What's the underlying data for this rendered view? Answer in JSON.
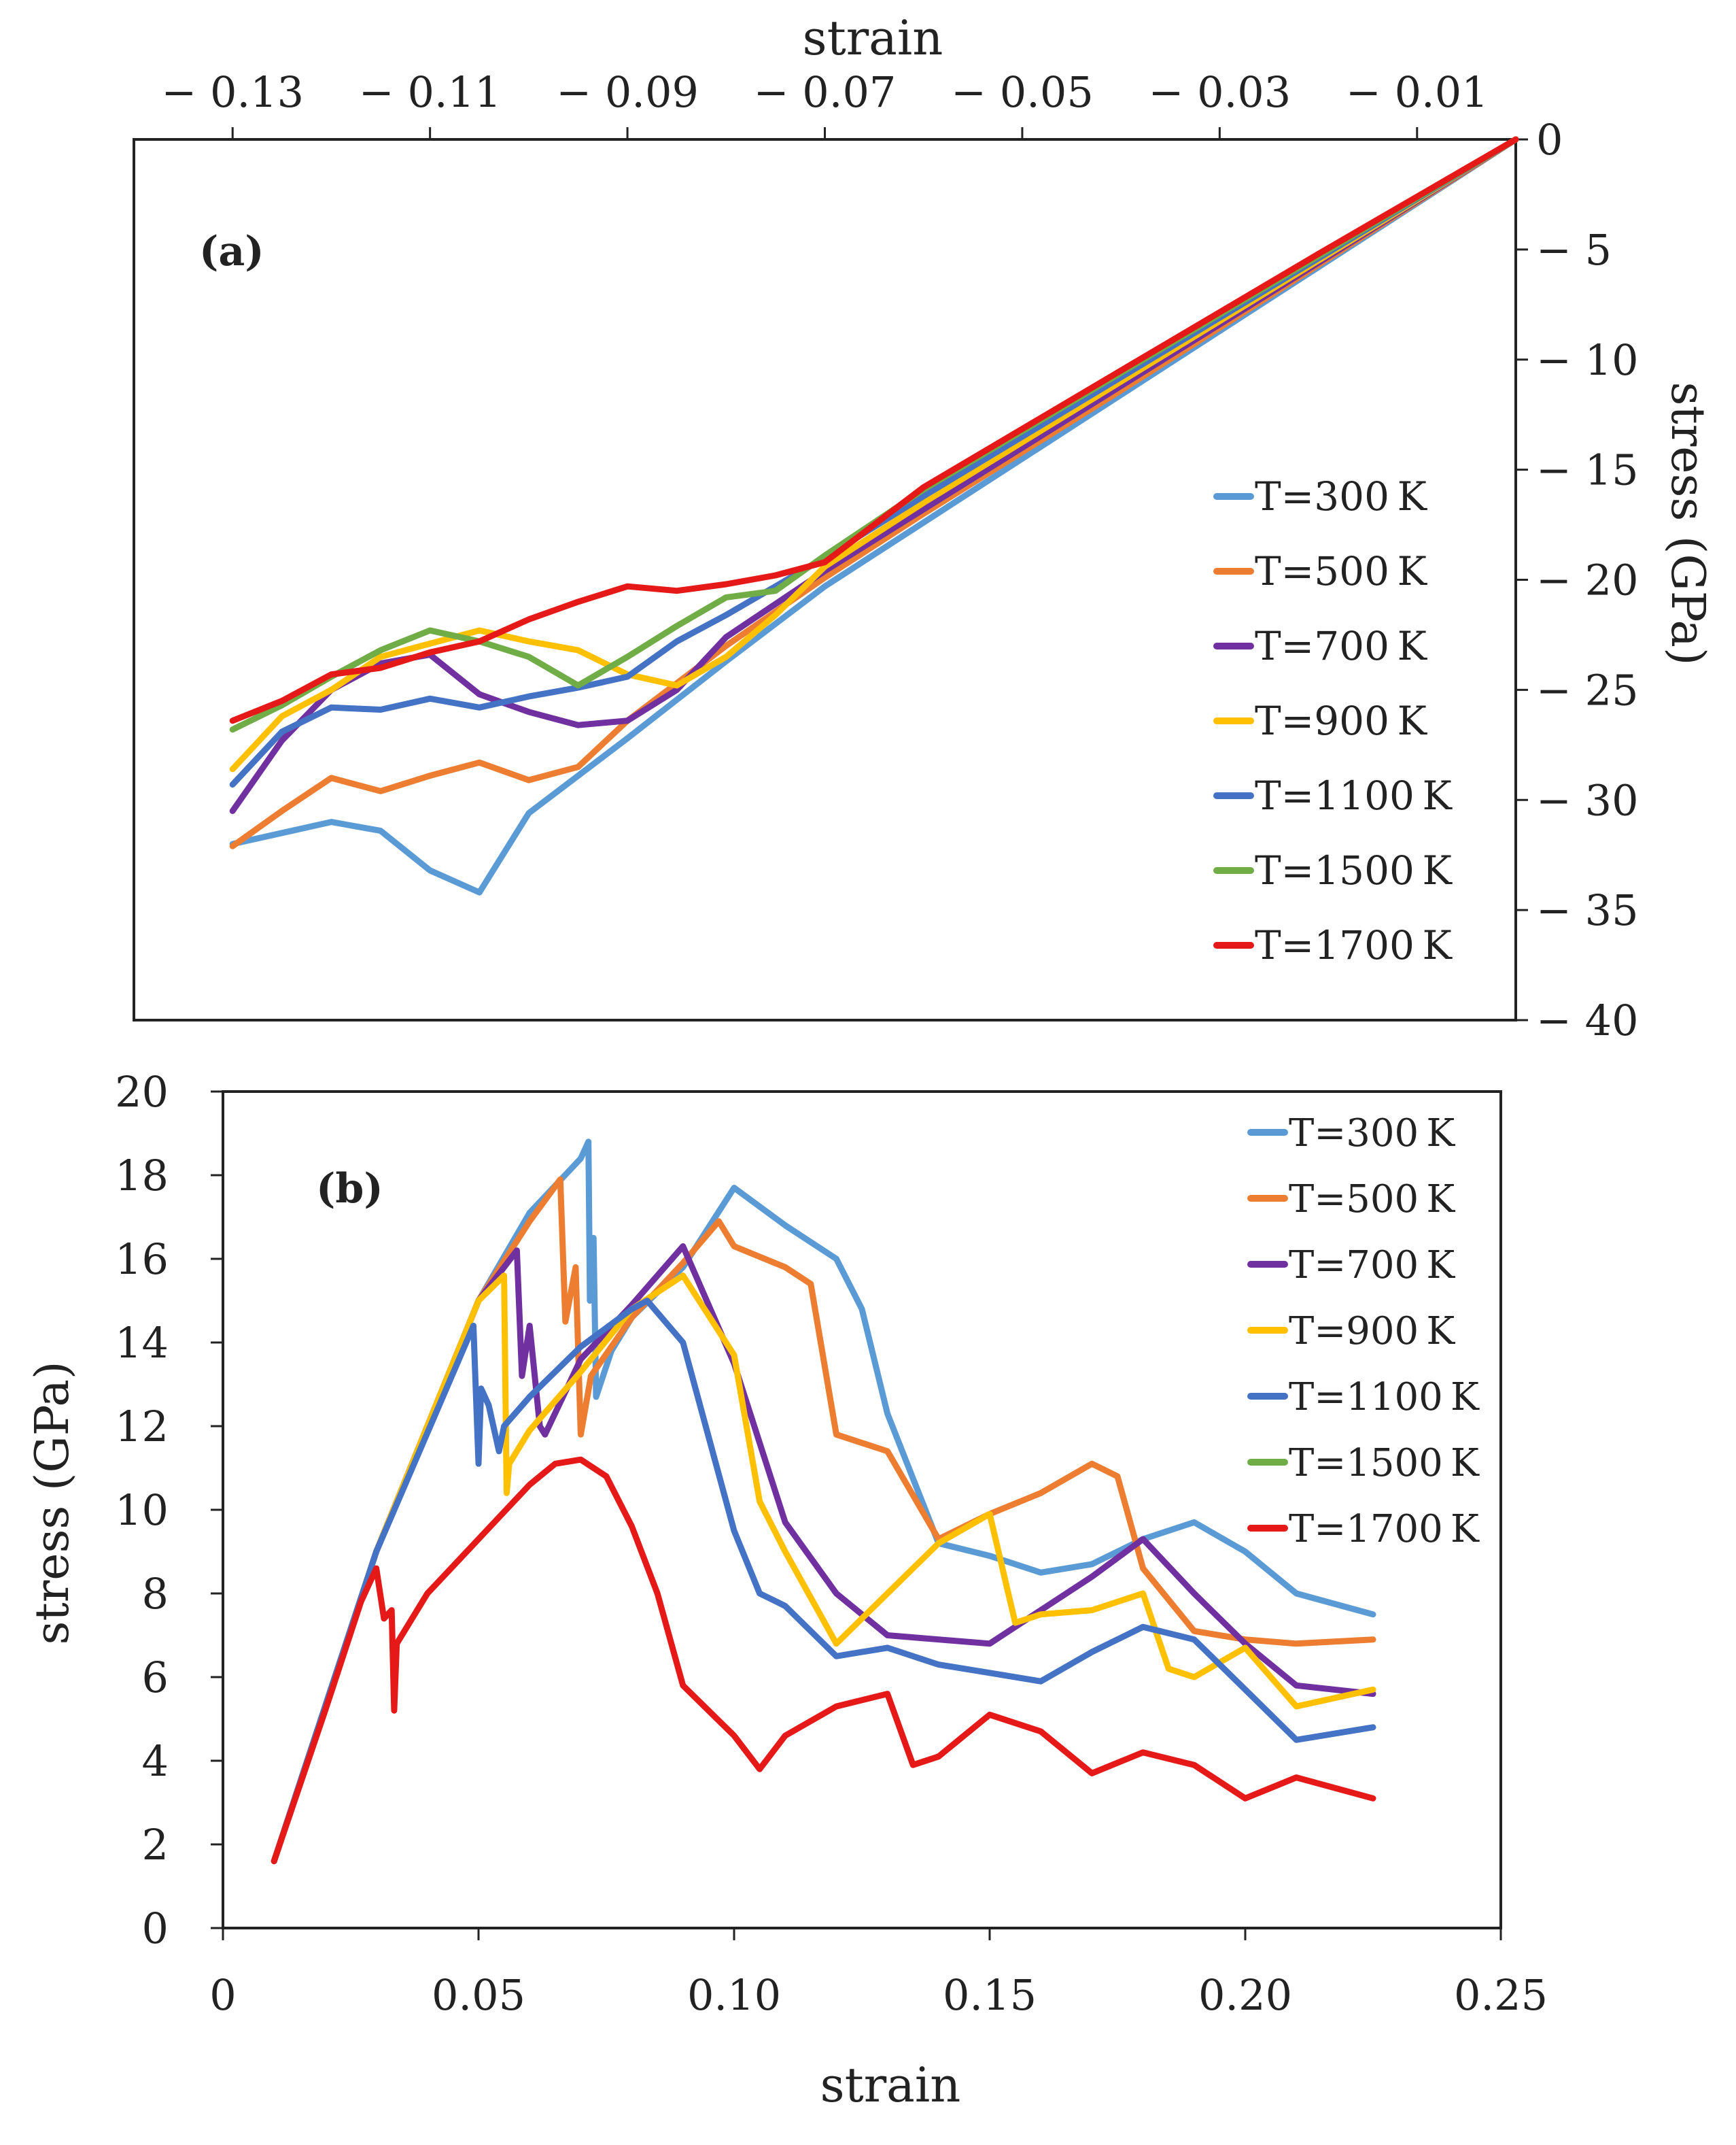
{
  "colors": {
    "T300": "#5b9bd5",
    "T500": "#ed7d31",
    "T700": "#7030a0",
    "T900": "#ffc000",
    "T1100": "#4472c4",
    "T1500": "#70ad47",
    "T1700": "#e61919",
    "axis": "#222222"
  },
  "chart_data": [
    {
      "id": "a",
      "type": "line",
      "panel_label": "(a)",
      "xlabel": "strain",
      "ylabel": "stress (GPa)",
      "xlim": [
        -0.14,
        0.0
      ],
      "ylim": [
        -40,
        0
      ],
      "x_axis_position": "top",
      "y_axis_position": "right",
      "xticks": [
        -0.13,
        -0.11,
        -0.09,
        -0.07,
        -0.05,
        -0.03,
        -0.01
      ],
      "xtick_labels": [
        "− 0.13",
        "− 0.11",
        "− 0.09",
        "− 0.07",
        "− 0.05",
        "− 0.03",
        "− 0.01"
      ],
      "yticks": [
        0,
        -5,
        -10,
        -15,
        -20,
        -25,
        -30,
        -35,
        -40
      ],
      "ytick_labels": [
        "0",
        "− 5",
        "− 10",
        "− 15",
        "− 20",
        "− 25",
        "− 30",
        "− 35",
        "− 40"
      ],
      "legend_position": "right",
      "series": [
        {
          "name": "T=300 K",
          "color_key": "T300",
          "x": [
            -0.0,
            -0.02,
            -0.04,
            -0.06,
            -0.07,
            -0.08,
            -0.09,
            -0.1,
            -0.105,
            -0.11,
            -0.115,
            -0.12,
            -0.125,
            -0.13
          ],
          "y": [
            0,
            -5.8,
            -11.6,
            -17.4,
            -20.3,
            -23.7,
            -27.2,
            -30.6,
            -34.2,
            -33.2,
            -31.4,
            -31.0,
            -31.5,
            -32.0
          ]
        },
        {
          "name": "T=500 K",
          "color_key": "T500",
          "x": [
            -0.0,
            -0.02,
            -0.04,
            -0.06,
            -0.07,
            -0.08,
            -0.09,
            -0.095,
            -0.1,
            -0.105,
            -0.11,
            -0.115,
            -0.12,
            -0.125,
            -0.13
          ],
          "y": [
            0,
            -5.7,
            -11.4,
            -17.0,
            -19.9,
            -23.0,
            -26.4,
            -28.5,
            -29.1,
            -28.3,
            -28.9,
            -29.6,
            -29.0,
            -30.5,
            -32.1
          ]
        },
        {
          "name": "T=700 K",
          "color_key": "T700",
          "x": [
            -0.0,
            -0.02,
            -0.04,
            -0.06,
            -0.07,
            -0.08,
            -0.085,
            -0.09,
            -0.095,
            -0.1,
            -0.105,
            -0.11,
            -0.115,
            -0.12,
            -0.125,
            -0.13
          ],
          "y": [
            0,
            -5.6,
            -11.2,
            -16.8,
            -19.6,
            -22.6,
            -25.0,
            -26.4,
            -26.6,
            -26.0,
            -25.2,
            -23.4,
            -23.8,
            -25.0,
            -27.3,
            -30.5
          ]
        },
        {
          "name": "T=900 K",
          "color_key": "T900",
          "x": [
            -0.0,
            -0.02,
            -0.04,
            -0.06,
            -0.07,
            -0.075,
            -0.08,
            -0.085,
            -0.09,
            -0.095,
            -0.1,
            -0.105,
            -0.11,
            -0.115,
            -0.12,
            -0.125,
            -0.13
          ],
          "y": [
            0,
            -5.5,
            -11.0,
            -16.5,
            -19.4,
            -21.6,
            -23.5,
            -24.8,
            -24.3,
            -23.2,
            -22.8,
            -22.3,
            -22.9,
            -23.5,
            -25.0,
            -26.2,
            -28.6
          ]
        },
        {
          "name": "T=1100 K",
          "color_key": "T1100",
          "x": [
            -0.0,
            -0.02,
            -0.04,
            -0.06,
            -0.07,
            -0.08,
            -0.085,
            -0.09,
            -0.095,
            -0.1,
            -0.105,
            -0.11,
            -0.115,
            -0.12,
            -0.125,
            -0.13
          ],
          "y": [
            0,
            -5.4,
            -10.8,
            -16.2,
            -19.0,
            -21.6,
            -22.8,
            -24.4,
            -24.9,
            -25.3,
            -25.8,
            -25.4,
            -25.9,
            -25.8,
            -26.9,
            -29.3
          ]
        },
        {
          "name": "T=1500 K",
          "color_key": "T1500",
          "x": [
            -0.0,
            -0.02,
            -0.04,
            -0.06,
            -0.07,
            -0.075,
            -0.08,
            -0.085,
            -0.09,
            -0.095,
            -0.1,
            -0.105,
            -0.11,
            -0.115,
            -0.12,
            -0.125,
            -0.13
          ],
          "y": [
            0,
            -5.3,
            -10.6,
            -15.9,
            -18.9,
            -20.5,
            -20.8,
            -22.1,
            -23.5,
            -24.8,
            -23.5,
            -22.8,
            -22.3,
            -23.2,
            -24.4,
            -25.7,
            -26.8
          ]
        },
        {
          "name": "T=1700 K",
          "color_key": "T1700",
          "x": [
            -0.0,
            -0.02,
            -0.04,
            -0.06,
            -0.07,
            -0.075,
            -0.08,
            -0.085,
            -0.09,
            -0.095,
            -0.1,
            -0.105,
            -0.11,
            -0.115,
            -0.12,
            -0.125,
            -0.13
          ],
          "y": [
            0,
            -5.2,
            -10.5,
            -15.8,
            -19.2,
            -19.8,
            -20.2,
            -20.5,
            -20.3,
            -21.0,
            -21.8,
            -22.8,
            -23.3,
            -24.0,
            -24.3,
            -25.5,
            -26.4
          ]
        }
      ]
    },
    {
      "id": "b",
      "type": "line",
      "panel_label": "(b)",
      "xlabel": "strain",
      "ylabel": "stress (GPa)",
      "xlim": [
        0,
        0.25
      ],
      "ylim": [
        0,
        20
      ],
      "x_axis_position": "bottom",
      "y_axis_position": "left",
      "xticks": [
        0,
        0.05,
        0.1,
        0.15,
        0.2,
        0.25
      ],
      "xtick_labels": [
        "0",
        "0.05",
        "0.10",
        "0.15",
        "0.20",
        "0.25"
      ],
      "yticks": [
        0,
        2,
        4,
        6,
        8,
        10,
        12,
        14,
        16,
        18,
        20
      ],
      "ytick_labels": [
        "0",
        "2",
        "4",
        "6",
        "8",
        "10",
        "12",
        "14",
        "16",
        "18",
        "20"
      ],
      "legend_position": "top-right",
      "series": [
        {
          "name": "T=300 K",
          "color_key": "T300",
          "x": [
            0.01,
            0.03,
            0.05,
            0.06,
            0.07,
            0.0715,
            0.0718,
            0.0725,
            0.073,
            0.076,
            0.08,
            0.09,
            0.1,
            0.11,
            0.12,
            0.125,
            0.13,
            0.14,
            0.15,
            0.16,
            0.17,
            0.18,
            0.19,
            0.2,
            0.21,
            0.225
          ],
          "y": [
            1.6,
            9.0,
            15.0,
            17.1,
            18.4,
            18.8,
            15.0,
            16.5,
            12.7,
            13.8,
            14.6,
            15.8,
            17.7,
            16.8,
            16.0,
            14.8,
            12.3,
            9.2,
            8.9,
            8.5,
            8.7,
            9.3,
            9.7,
            9.0,
            8.0,
            7.5
          ]
        },
        {
          "name": "T=500 K",
          "color_key": "T500",
          "x": [
            0.01,
            0.03,
            0.05,
            0.06,
            0.066,
            0.067,
            0.069,
            0.07,
            0.072,
            0.08,
            0.09,
            0.097,
            0.1,
            0.11,
            0.115,
            0.12,
            0.13,
            0.14,
            0.15,
            0.16,
            0.17,
            0.175,
            0.18,
            0.19,
            0.2,
            0.21,
            0.225
          ],
          "y": [
            1.6,
            9.0,
            15.0,
            16.9,
            17.9,
            14.5,
            15.8,
            11.8,
            13.2,
            14.6,
            15.9,
            16.9,
            16.3,
            15.8,
            15.4,
            11.8,
            11.4,
            9.3,
            9.9,
            10.4,
            11.1,
            10.8,
            8.6,
            7.1,
            6.9,
            6.8,
            6.9
          ]
        },
        {
          "name": "T=700 K",
          "color_key": "T700",
          "x": [
            0.01,
            0.03,
            0.05,
            0.0575,
            0.0585,
            0.06,
            0.062,
            0.063,
            0.07,
            0.08,
            0.09,
            0.1,
            0.11,
            0.12,
            0.13,
            0.14,
            0.15,
            0.16,
            0.17,
            0.18,
            0.19,
            0.2,
            0.21,
            0.225
          ],
          "y": [
            1.6,
            9.0,
            15.0,
            16.2,
            13.2,
            14.4,
            12.0,
            11.8,
            13.6,
            14.9,
            16.3,
            13.5,
            9.7,
            8.0,
            7.0,
            6.9,
            6.8,
            7.6,
            8.4,
            9.3,
            8.0,
            6.8,
            5.8,
            5.6
          ]
        },
        {
          "name": "T=900 K",
          "color_key": "T900",
          "x": [
            0.01,
            0.03,
            0.05,
            0.055,
            0.0555,
            0.056,
            0.06,
            0.07,
            0.08,
            0.09,
            0.1,
            0.105,
            0.11,
            0.12,
            0.13,
            0.14,
            0.15,
            0.155,
            0.16,
            0.17,
            0.18,
            0.185,
            0.19,
            0.2,
            0.21,
            0.225
          ],
          "y": [
            1.6,
            9.0,
            15.0,
            15.6,
            10.4,
            11.1,
            11.9,
            13.3,
            14.8,
            15.6,
            13.7,
            10.2,
            9.0,
            6.8,
            8.0,
            9.2,
            9.9,
            7.3,
            7.5,
            7.6,
            8.0,
            6.2,
            6.0,
            6.7,
            5.3,
            5.7
          ]
        },
        {
          "name": "T=1100 K",
          "color_key": "T1100",
          "x": [
            0.01,
            0.03,
            0.049,
            0.05,
            0.0505,
            0.052,
            0.054,
            0.055,
            0.06,
            0.07,
            0.08,
            0.083,
            0.09,
            0.1,
            0.105,
            0.11,
            0.12,
            0.13,
            0.14,
            0.15,
            0.16,
            0.17,
            0.18,
            0.19,
            0.2,
            0.21,
            0.225
          ],
          "y": [
            1.6,
            9.0,
            14.4,
            11.1,
            12.9,
            12.5,
            11.4,
            12.0,
            12.7,
            13.9,
            14.8,
            15.0,
            14.0,
            9.5,
            8.0,
            7.7,
            6.5,
            6.7,
            6.3,
            6.1,
            5.9,
            6.6,
            7.2,
            6.9,
            5.7,
            4.5,
            4.8
          ]
        },
        {
          "name": "T=1500 K",
          "color_key": "T1500",
          "x": [],
          "y": []
        },
        {
          "name": "T=1700 K",
          "color_key": "T1700",
          "x": [
            0.01,
            0.02,
            0.027,
            0.03,
            0.0315,
            0.033,
            0.0335,
            0.034,
            0.035,
            0.04,
            0.05,
            0.06,
            0.065,
            0.07,
            0.075,
            0.08,
            0.085,
            0.09,
            0.1,
            0.105,
            0.11,
            0.12,
            0.13,
            0.135,
            0.14,
            0.15,
            0.16,
            0.17,
            0.18,
            0.19,
            0.2,
            0.21,
            0.225
          ],
          "y": [
            1.6,
            5.2,
            7.8,
            8.6,
            7.4,
            7.6,
            5.2,
            6.8,
            7.0,
            8.0,
            9.3,
            10.6,
            11.1,
            11.2,
            10.8,
            9.6,
            8.0,
            5.8,
            4.6,
            3.8,
            4.6,
            5.3,
            5.6,
            3.9,
            4.1,
            5.1,
            4.7,
            3.7,
            4.2,
            3.9,
            3.1,
            3.6,
            3.1
          ]
        }
      ]
    }
  ]
}
